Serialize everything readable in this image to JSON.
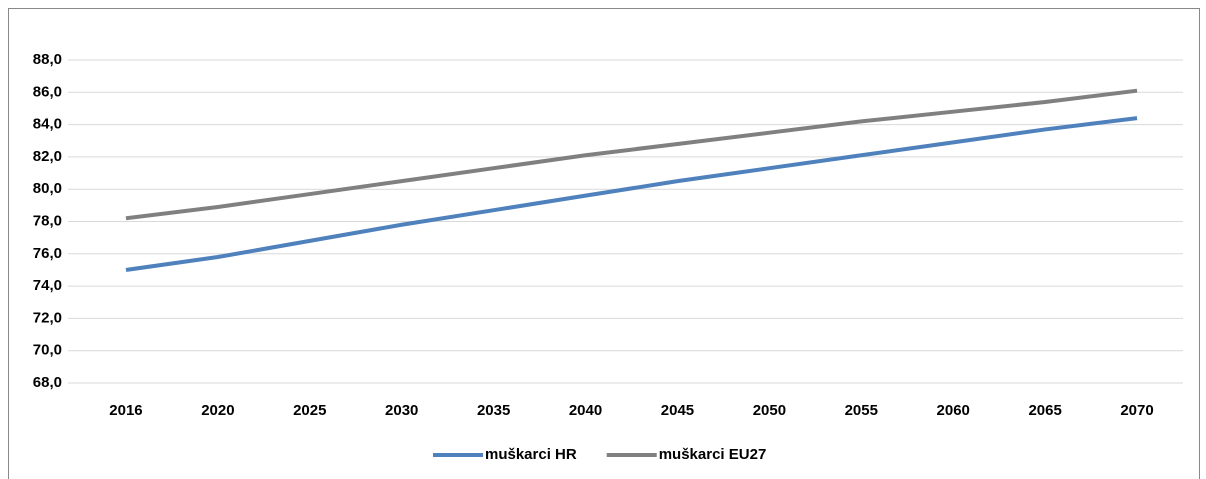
{
  "chart_data": {
    "type": "line",
    "categories": [
      "2016",
      "2020",
      "2025",
      "2030",
      "2035",
      "2040",
      "2045",
      "2050",
      "2055",
      "2060",
      "2065",
      "2070"
    ],
    "series": [
      {
        "name": "muškarci HR",
        "color": "#4f81bd",
        "values": [
          75.0,
          75.8,
          76.8,
          77.8,
          78.7,
          79.6,
          80.5,
          81.3,
          82.1,
          82.9,
          83.7,
          84.4
        ]
      },
      {
        "name": "muškarci EU27",
        "color": "#808080",
        "values": [
          78.2,
          78.9,
          79.7,
          80.5,
          81.3,
          82.1,
          82.8,
          83.5,
          84.2,
          84.8,
          85.4,
          86.1
        ]
      }
    ],
    "ylim": [
      68,
      88
    ],
    "yticks": [
      {
        "value": 68,
        "label": "68,0"
      },
      {
        "value": 70,
        "label": "70,0"
      },
      {
        "value": 72,
        "label": "72,0"
      },
      {
        "value": 74,
        "label": "74,0"
      },
      {
        "value": 76,
        "label": "76,0"
      },
      {
        "value": 78,
        "label": "78,0"
      },
      {
        "value": 80,
        "label": "80,0"
      },
      {
        "value": 82,
        "label": "82,0"
      },
      {
        "value": 84,
        "label": "84,0"
      },
      {
        "value": 86,
        "label": "86,0"
      },
      {
        "value": 88,
        "label": "88,0"
      }
    ],
    "grid": true,
    "legend": "bottom"
  }
}
